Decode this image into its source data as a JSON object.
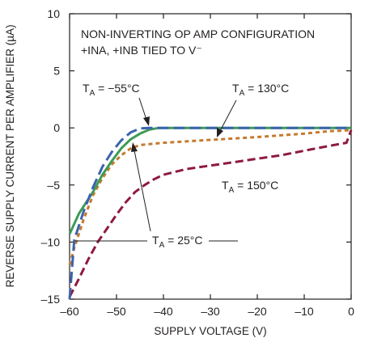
{
  "chart_data": {
    "type": "line",
    "xlabel": "SUPPLY VOLTAGE (V)",
    "ylabel": "REVERSE SUPPLY CURRENT PER AMPLIFIER (µA)",
    "xlim": [
      -60,
      0
    ],
    "ylim": [
      -15,
      10
    ],
    "xticks": [
      -60,
      -50,
      -40,
      -30,
      -20,
      -10,
      0
    ],
    "yticks": [
      -15,
      -10,
      -5,
      0,
      5,
      10
    ],
    "xtick_labels": [
      "–60",
      "–50",
      "–40",
      "–30",
      "–20",
      "–10",
      "0"
    ],
    "ytick_labels": [
      "–15",
      "–10",
      "–5",
      "0",
      "5",
      "10"
    ],
    "grid": false,
    "legend": "none",
    "note_lines": [
      "NON-INVERTING OP AMP CONFIGURATION",
      "+INA, +INB TIED TO V⁻"
    ],
    "series": [
      {
        "label_main": "T",
        "label_sub": "A",
        "label_rest": " = −55°C",
        "color": "#3c63ad",
        "dash": "14 6",
        "points": [
          [
            -60,
            -15
          ],
          [
            -59,
            -9.8
          ],
          [
            -57,
            -7.3
          ],
          [
            -55,
            -5.2
          ],
          [
            -53,
            -3.4
          ],
          [
            -51,
            -2.1
          ],
          [
            -49,
            -1.1
          ],
          [
            -47,
            -0.4
          ],
          [
            -45,
            -0.05
          ],
          [
            -43,
            0
          ],
          [
            0,
            0
          ]
        ]
      },
      {
        "label_main": "T",
        "label_sub": "A",
        "label_rest": " = 25°C",
        "color": "#3e9b55",
        "dash": "",
        "points": [
          [
            -60,
            -9.3
          ],
          [
            -58,
            -7.5
          ],
          [
            -55,
            -5.6
          ],
          [
            -53,
            -4.1
          ],
          [
            -51,
            -2.9
          ],
          [
            -49,
            -1.8
          ],
          [
            -47,
            -1.0
          ],
          [
            -45,
            -0.5
          ],
          [
            -43,
            -0.15
          ],
          [
            -41,
            0
          ],
          [
            0,
            0
          ]
        ]
      },
      {
        "label_main": "T",
        "label_sub": "A",
        "label_rest": " = 130°C",
        "color": "#c57a2e",
        "dash": "5 4",
        "points": [
          [
            -60,
            -12
          ],
          [
            -59,
            -10.5
          ],
          [
            -57,
            -8.0
          ],
          [
            -55,
            -5.9
          ],
          [
            -53,
            -4.4
          ],
          [
            -51,
            -3.2
          ],
          [
            -49,
            -2.4
          ],
          [
            -47,
            -1.8
          ],
          [
            -45,
            -1.5
          ],
          [
            -40,
            -1.3
          ],
          [
            -30,
            -1.05
          ],
          [
            -20,
            -0.8
          ],
          [
            -10,
            -0.5
          ],
          [
            -5,
            -0.3
          ],
          [
            0,
            -0.2
          ]
        ]
      },
      {
        "label_main": "T",
        "label_sub": "A",
        "label_rest": " = 150°C",
        "color": "#8e1a3e",
        "dash": "10 5",
        "points": [
          [
            -60,
            -14.8
          ],
          [
            -58,
            -13.2
          ],
          [
            -56,
            -11.5
          ],
          [
            -54,
            -10.0
          ],
          [
            -52,
            -8.8
          ],
          [
            -50,
            -7.6
          ],
          [
            -48,
            -6.5
          ],
          [
            -46,
            -5.6
          ],
          [
            -44,
            -5.0
          ],
          [
            -42,
            -4.5
          ],
          [
            -40,
            -4.1
          ],
          [
            -35,
            -3.6
          ],
          [
            -30,
            -3.3
          ],
          [
            -25,
            -3.0
          ],
          [
            -20,
            -2.7
          ],
          [
            -15,
            -2.4
          ],
          [
            -10,
            -2.0
          ],
          [
            -5,
            -1.6
          ],
          [
            -1,
            -1.3
          ],
          [
            0,
            -0.2
          ]
        ]
      }
    ]
  }
}
